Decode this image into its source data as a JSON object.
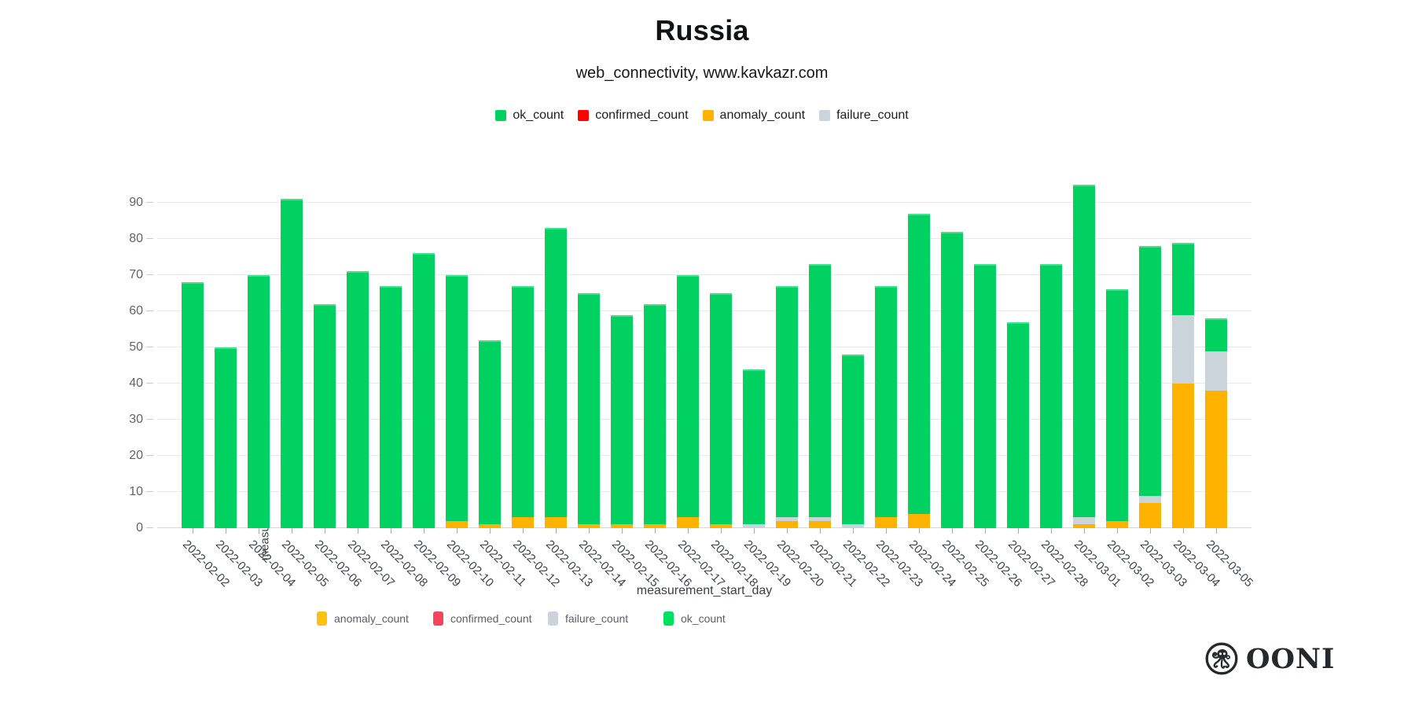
{
  "header": {
    "title": "Russia",
    "subtitle": "web_connectivity, www.kavkazr.com"
  },
  "legend_top": {
    "items": [
      {
        "label": "ok_count",
        "color": "#00d160"
      },
      {
        "label": "confirmed_count",
        "color": "#ff0000"
      },
      {
        "label": "anomaly_count",
        "color": "#ffb300"
      },
      {
        "label": "failure_count",
        "color": "#ccd4db"
      }
    ]
  },
  "legend_bottom": {
    "items": [
      {
        "label": "anomaly_count",
        "color": "#fdc113"
      },
      {
        "label": "confirmed_count",
        "color": "#f4455c"
      },
      {
        "label": "failure_count",
        "color": "#ccd3da"
      },
      {
        "label": "ok_count",
        "color": "#00e05f"
      }
    ]
  },
  "chart_data": {
    "type": "bar",
    "stacked": true,
    "title": "Russia",
    "subtitle": "web_connectivity, www.kavkazr.com",
    "xlabel": "measurement_start_day",
    "ylabel": "measurement count",
    "ylim": [
      0,
      95
    ],
    "yticks": [
      0,
      10,
      20,
      30,
      40,
      50,
      60,
      70,
      80,
      90
    ],
    "grid": "horizontal",
    "legend_position": "top",
    "categories": [
      "2022-02-02",
      "2022-02-03",
      "2022-02-04",
      "2022-02-05",
      "2022-02-06",
      "2022-02-07",
      "2022-02-08",
      "2022-02-09",
      "2022-02-10",
      "2022-02-11",
      "2022-02-12",
      "2022-02-13",
      "2022-02-14",
      "2022-02-15",
      "2022-02-16",
      "2022-02-17",
      "2022-02-18",
      "2022-02-19",
      "2022-02-20",
      "2022-02-21",
      "2022-02-22",
      "2022-02-23",
      "2022-02-24",
      "2022-02-25",
      "2022-02-26",
      "2022-02-27",
      "2022-02-28",
      "2022-03-01",
      "2022-03-02",
      "2022-03-03",
      "2022-03-04",
      "2022-03-05"
    ],
    "series": [
      {
        "name": "anomaly_count",
        "color": "#ffb300",
        "values": [
          0,
          0,
          0,
          0,
          0,
          0,
          0,
          0,
          2,
          1,
          3,
          3,
          1,
          1,
          1,
          3,
          1,
          0,
          2,
          2,
          0,
          3,
          4,
          0,
          0,
          0,
          0,
          1,
          2,
          7,
          40,
          38
        ]
      },
      {
        "name": "confirmed_count",
        "color": "#ff0000",
        "values": [
          0,
          0,
          0,
          0,
          0,
          0,
          0,
          0,
          0,
          0,
          0,
          0,
          0,
          0,
          0,
          0,
          0,
          0,
          0,
          0,
          0,
          0,
          0,
          0,
          0,
          0,
          0,
          0,
          0,
          0,
          0,
          0
        ]
      },
      {
        "name": "failure_count",
        "color": "#ccd4db",
        "values": [
          0,
          0,
          0,
          0,
          0,
          0,
          0,
          0,
          0,
          0,
          0,
          0,
          0,
          0,
          0,
          0,
          0,
          1,
          1,
          1,
          1,
          0,
          0,
          0,
          0,
          0,
          0,
          2,
          0,
          2,
          19,
          11
        ]
      },
      {
        "name": "ok_count",
        "color": "#00d160",
        "values": [
          68,
          50,
          70,
          91,
          62,
          71,
          67,
          76,
          68,
          51,
          64,
          80,
          64,
          58,
          61,
          67,
          64,
          43,
          64,
          70,
          47,
          64,
          83,
          82,
          73,
          57,
          73,
          92,
          64,
          69,
          20,
          9
        ]
      }
    ],
    "totals": [
      68,
      50,
      70,
      91,
      62,
      71,
      67,
      76,
      70,
      52,
      67,
      83,
      65,
      59,
      62,
      70,
      65,
      44,
      67,
      73,
      48,
      67,
      87,
      82,
      73,
      57,
      73,
      95,
      66,
      78,
      79,
      58
    ]
  },
  "footer": {
    "brand": "OONI"
  }
}
